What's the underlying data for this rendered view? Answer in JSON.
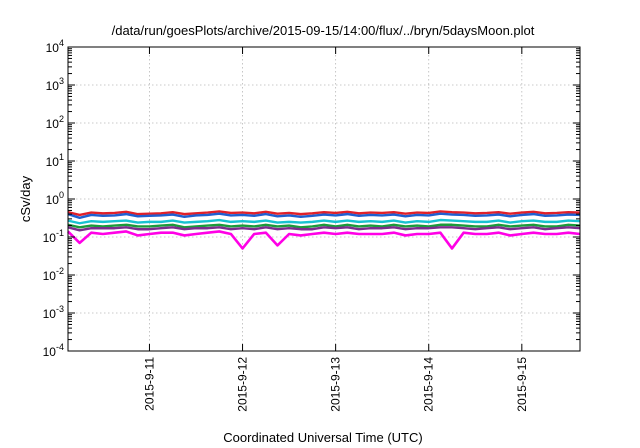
{
  "chart_data": {
    "type": "line",
    "title": "/data/run/goesPlots/archive/2015-09-15/14:00/flux/../bryn/5daysMoon.plot",
    "xlabel": "Coordinated Universal Time (UTC)",
    "ylabel": "cSv/day",
    "yscale": "log",
    "ylim": [
      0.0001,
      10000
    ],
    "yticks": [
      {
        "base": "10",
        "exp": "-4"
      },
      {
        "base": "10",
        "exp": "-3"
      },
      {
        "base": "10",
        "exp": "-2"
      },
      {
        "base": "10",
        "exp": "-1"
      },
      {
        "base": "10",
        "exp": "0"
      },
      {
        "base": "10",
        "exp": "1"
      },
      {
        "base": "10",
        "exp": "2"
      },
      {
        "base": "10",
        "exp": "3"
      },
      {
        "base": "10",
        "exp": "4"
      }
    ],
    "xlim": [
      "2015-09-10 03:00",
      "2015-09-15 15:00"
    ],
    "xticks": [
      "2015-9-11",
      "2015-9-12",
      "2015-9-13",
      "2015-9-14",
      "2015-9-15"
    ],
    "grid": true,
    "legend": "none",
    "x": [
      "2015-09-10 03:00",
      "2015-09-10 06:00",
      "2015-09-10 09:00",
      "2015-09-10 12:00",
      "2015-09-10 15:00",
      "2015-09-10 18:00",
      "2015-09-10 21:00",
      "2015-09-11 00:00",
      "2015-09-11 03:00",
      "2015-09-11 06:00",
      "2015-09-11 09:00",
      "2015-09-11 12:00",
      "2015-09-11 15:00",
      "2015-09-11 18:00",
      "2015-09-11 21:00",
      "2015-09-12 00:00",
      "2015-09-12 03:00",
      "2015-09-12 06:00",
      "2015-09-12 09:00",
      "2015-09-12 12:00",
      "2015-09-12 15:00",
      "2015-09-12 18:00",
      "2015-09-12 21:00",
      "2015-09-13 00:00",
      "2015-09-13 03:00",
      "2015-09-13 06:00",
      "2015-09-13 09:00",
      "2015-09-13 12:00",
      "2015-09-13 15:00",
      "2015-09-13 18:00",
      "2015-09-13 21:00",
      "2015-09-14 00:00",
      "2015-09-14 03:00",
      "2015-09-14 06:00",
      "2015-09-14 09:00",
      "2015-09-14 12:00",
      "2015-09-14 15:00",
      "2015-09-14 18:00",
      "2015-09-14 21:00",
      "2015-09-15 00:00",
      "2015-09-15 03:00",
      "2015-09-15 06:00",
      "2015-09-15 09:00",
      "2015-09-15 12:00",
      "2015-09-15 15:00"
    ],
    "series": [
      {
        "color": "#e0202a",
        "values": [
          0.45,
          0.38,
          0.44,
          0.42,
          0.43,
          0.46,
          0.4,
          0.41,
          0.42,
          0.45,
          0.4,
          0.42,
          0.44,
          0.47,
          0.43,
          0.44,
          0.42,
          0.46,
          0.41,
          0.43,
          0.4,
          0.42,
          0.45,
          0.43,
          0.46,
          0.42,
          0.44,
          0.43,
          0.45,
          0.41,
          0.44,
          0.43,
          0.47,
          0.45,
          0.44,
          0.42,
          0.43,
          0.45,
          0.41,
          0.44,
          0.46,
          0.42,
          0.43,
          0.45,
          0.44
        ]
      },
      {
        "color": "#1f5fd0",
        "values": [
          0.4,
          0.32,
          0.38,
          0.36,
          0.37,
          0.4,
          0.35,
          0.36,
          0.37,
          0.39,
          0.34,
          0.37,
          0.38,
          0.41,
          0.37,
          0.38,
          0.36,
          0.4,
          0.35,
          0.37,
          0.34,
          0.36,
          0.39,
          0.37,
          0.4,
          0.36,
          0.38,
          0.37,
          0.39,
          0.35,
          0.38,
          0.37,
          0.41,
          0.39,
          0.38,
          0.36,
          0.37,
          0.39,
          0.35,
          0.38,
          0.4,
          0.36,
          0.37,
          0.39,
          0.38
        ]
      },
      {
        "color": "#18c2d0",
        "values": [
          0.27,
          0.23,
          0.26,
          0.25,
          0.26,
          0.27,
          0.24,
          0.25,
          0.25,
          0.27,
          0.24,
          0.25,
          0.26,
          0.28,
          0.25,
          0.26,
          0.25,
          0.27,
          0.24,
          0.25,
          0.24,
          0.25,
          0.27,
          0.25,
          0.27,
          0.25,
          0.26,
          0.25,
          0.27,
          0.24,
          0.26,
          0.25,
          0.28,
          0.27,
          0.26,
          0.25,
          0.25,
          0.27,
          0.24,
          0.26,
          0.27,
          0.25,
          0.25,
          0.27,
          0.26
        ]
      },
      {
        "color": "#1b9a3a",
        "values": [
          0.21,
          0.18,
          0.2,
          0.19,
          0.2,
          0.21,
          0.19,
          0.19,
          0.2,
          0.21,
          0.18,
          0.19,
          0.2,
          0.21,
          0.19,
          0.2,
          0.19,
          0.21,
          0.19,
          0.2,
          0.18,
          0.19,
          0.21,
          0.19,
          0.21,
          0.19,
          0.2,
          0.19,
          0.21,
          0.19,
          0.2,
          0.19,
          0.21,
          0.21,
          0.2,
          0.19,
          0.19,
          0.21,
          0.19,
          0.2,
          0.21,
          0.19,
          0.19,
          0.21,
          0.2
        ]
      },
      {
        "color": "#7b2d8e",
        "values": [
          0.18,
          0.15,
          0.17,
          0.17,
          0.17,
          0.18,
          0.16,
          0.16,
          0.17,
          0.18,
          0.16,
          0.17,
          0.17,
          0.18,
          0.16,
          0.17,
          0.16,
          0.18,
          0.16,
          0.17,
          0.16,
          0.16,
          0.18,
          0.17,
          0.18,
          0.16,
          0.17,
          0.17,
          0.18,
          0.16,
          0.17,
          0.17,
          0.18,
          0.18,
          0.17,
          0.16,
          0.17,
          0.18,
          0.16,
          0.17,
          0.18,
          0.16,
          0.17,
          0.18,
          0.17
        ]
      },
      {
        "color": "#ff00e6",
        "values": [
          0.14,
          0.07,
          0.13,
          0.12,
          0.13,
          0.14,
          0.11,
          0.12,
          0.13,
          0.13,
          0.11,
          0.12,
          0.13,
          0.14,
          0.12,
          0.05,
          0.12,
          0.13,
          0.06,
          0.12,
          0.11,
          0.12,
          0.13,
          0.12,
          0.13,
          0.12,
          0.12,
          0.12,
          0.13,
          0.11,
          0.12,
          0.12,
          0.13,
          0.05,
          0.13,
          0.12,
          0.12,
          0.13,
          0.11,
          0.12,
          0.13,
          0.12,
          0.12,
          0.13,
          0.12
        ]
      }
    ]
  }
}
